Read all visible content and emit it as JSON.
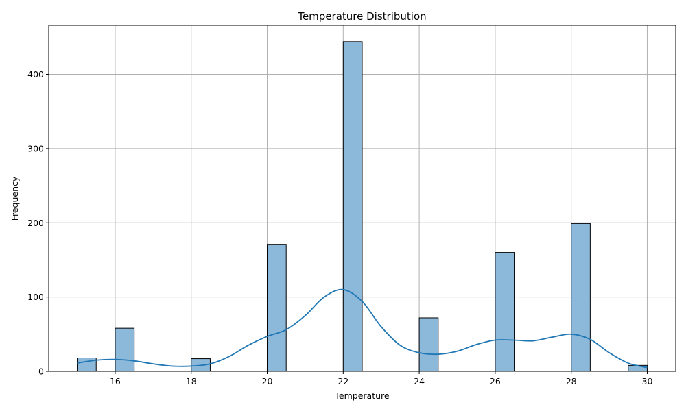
{
  "chart_data": {
    "type": "bar",
    "title": "Temperature Distribution",
    "xlabel": "Temperature",
    "ylabel": "Frequency",
    "xlim": [
      14.25,
      30.75
    ],
    "ylim": [
      0,
      466
    ],
    "xticks": [
      16,
      18,
      20,
      22,
      24,
      26,
      28,
      30
    ],
    "yticks": [
      0,
      100,
      200,
      300,
      400
    ],
    "grid": true,
    "bin_width": 0.5,
    "bars": [
      {
        "x": 15.0,
        "value": 18
      },
      {
        "x": 16.0,
        "value": 58
      },
      {
        "x": 18.0,
        "value": 17
      },
      {
        "x": 20.0,
        "value": 171
      },
      {
        "x": 22.0,
        "value": 444
      },
      {
        "x": 24.0,
        "value": 72
      },
      {
        "x": 26.0,
        "value": 160
      },
      {
        "x": 28.0,
        "value": 199
      },
      {
        "x": 29.5,
        "value": 8
      }
    ],
    "kde": {
      "x": [
        15.0,
        15.5,
        16.0,
        16.5,
        17.0,
        17.5,
        18.0,
        18.5,
        19.0,
        19.5,
        20.0,
        20.5,
        21.0,
        21.5,
        22.0,
        22.5,
        23.0,
        23.5,
        24.0,
        24.5,
        25.0,
        25.5,
        26.0,
        26.5,
        27.0,
        27.5,
        28.0,
        28.5,
        29.0,
        29.5,
        30.0
      ],
      "y": [
        11,
        15,
        16,
        14,
        10,
        7,
        7,
        10,
        20,
        35,
        47,
        56,
        75,
        100,
        110,
        94,
        60,
        35,
        25,
        23,
        27,
        36,
        42,
        42,
        41,
        46,
        50,
        43,
        25,
        11,
        5
      ]
    },
    "colors": {
      "bar_fill": "#8cb8da",
      "bar_edge": "#000000",
      "kde_line": "#1f77b4",
      "grid": "#b0b0b0"
    }
  }
}
